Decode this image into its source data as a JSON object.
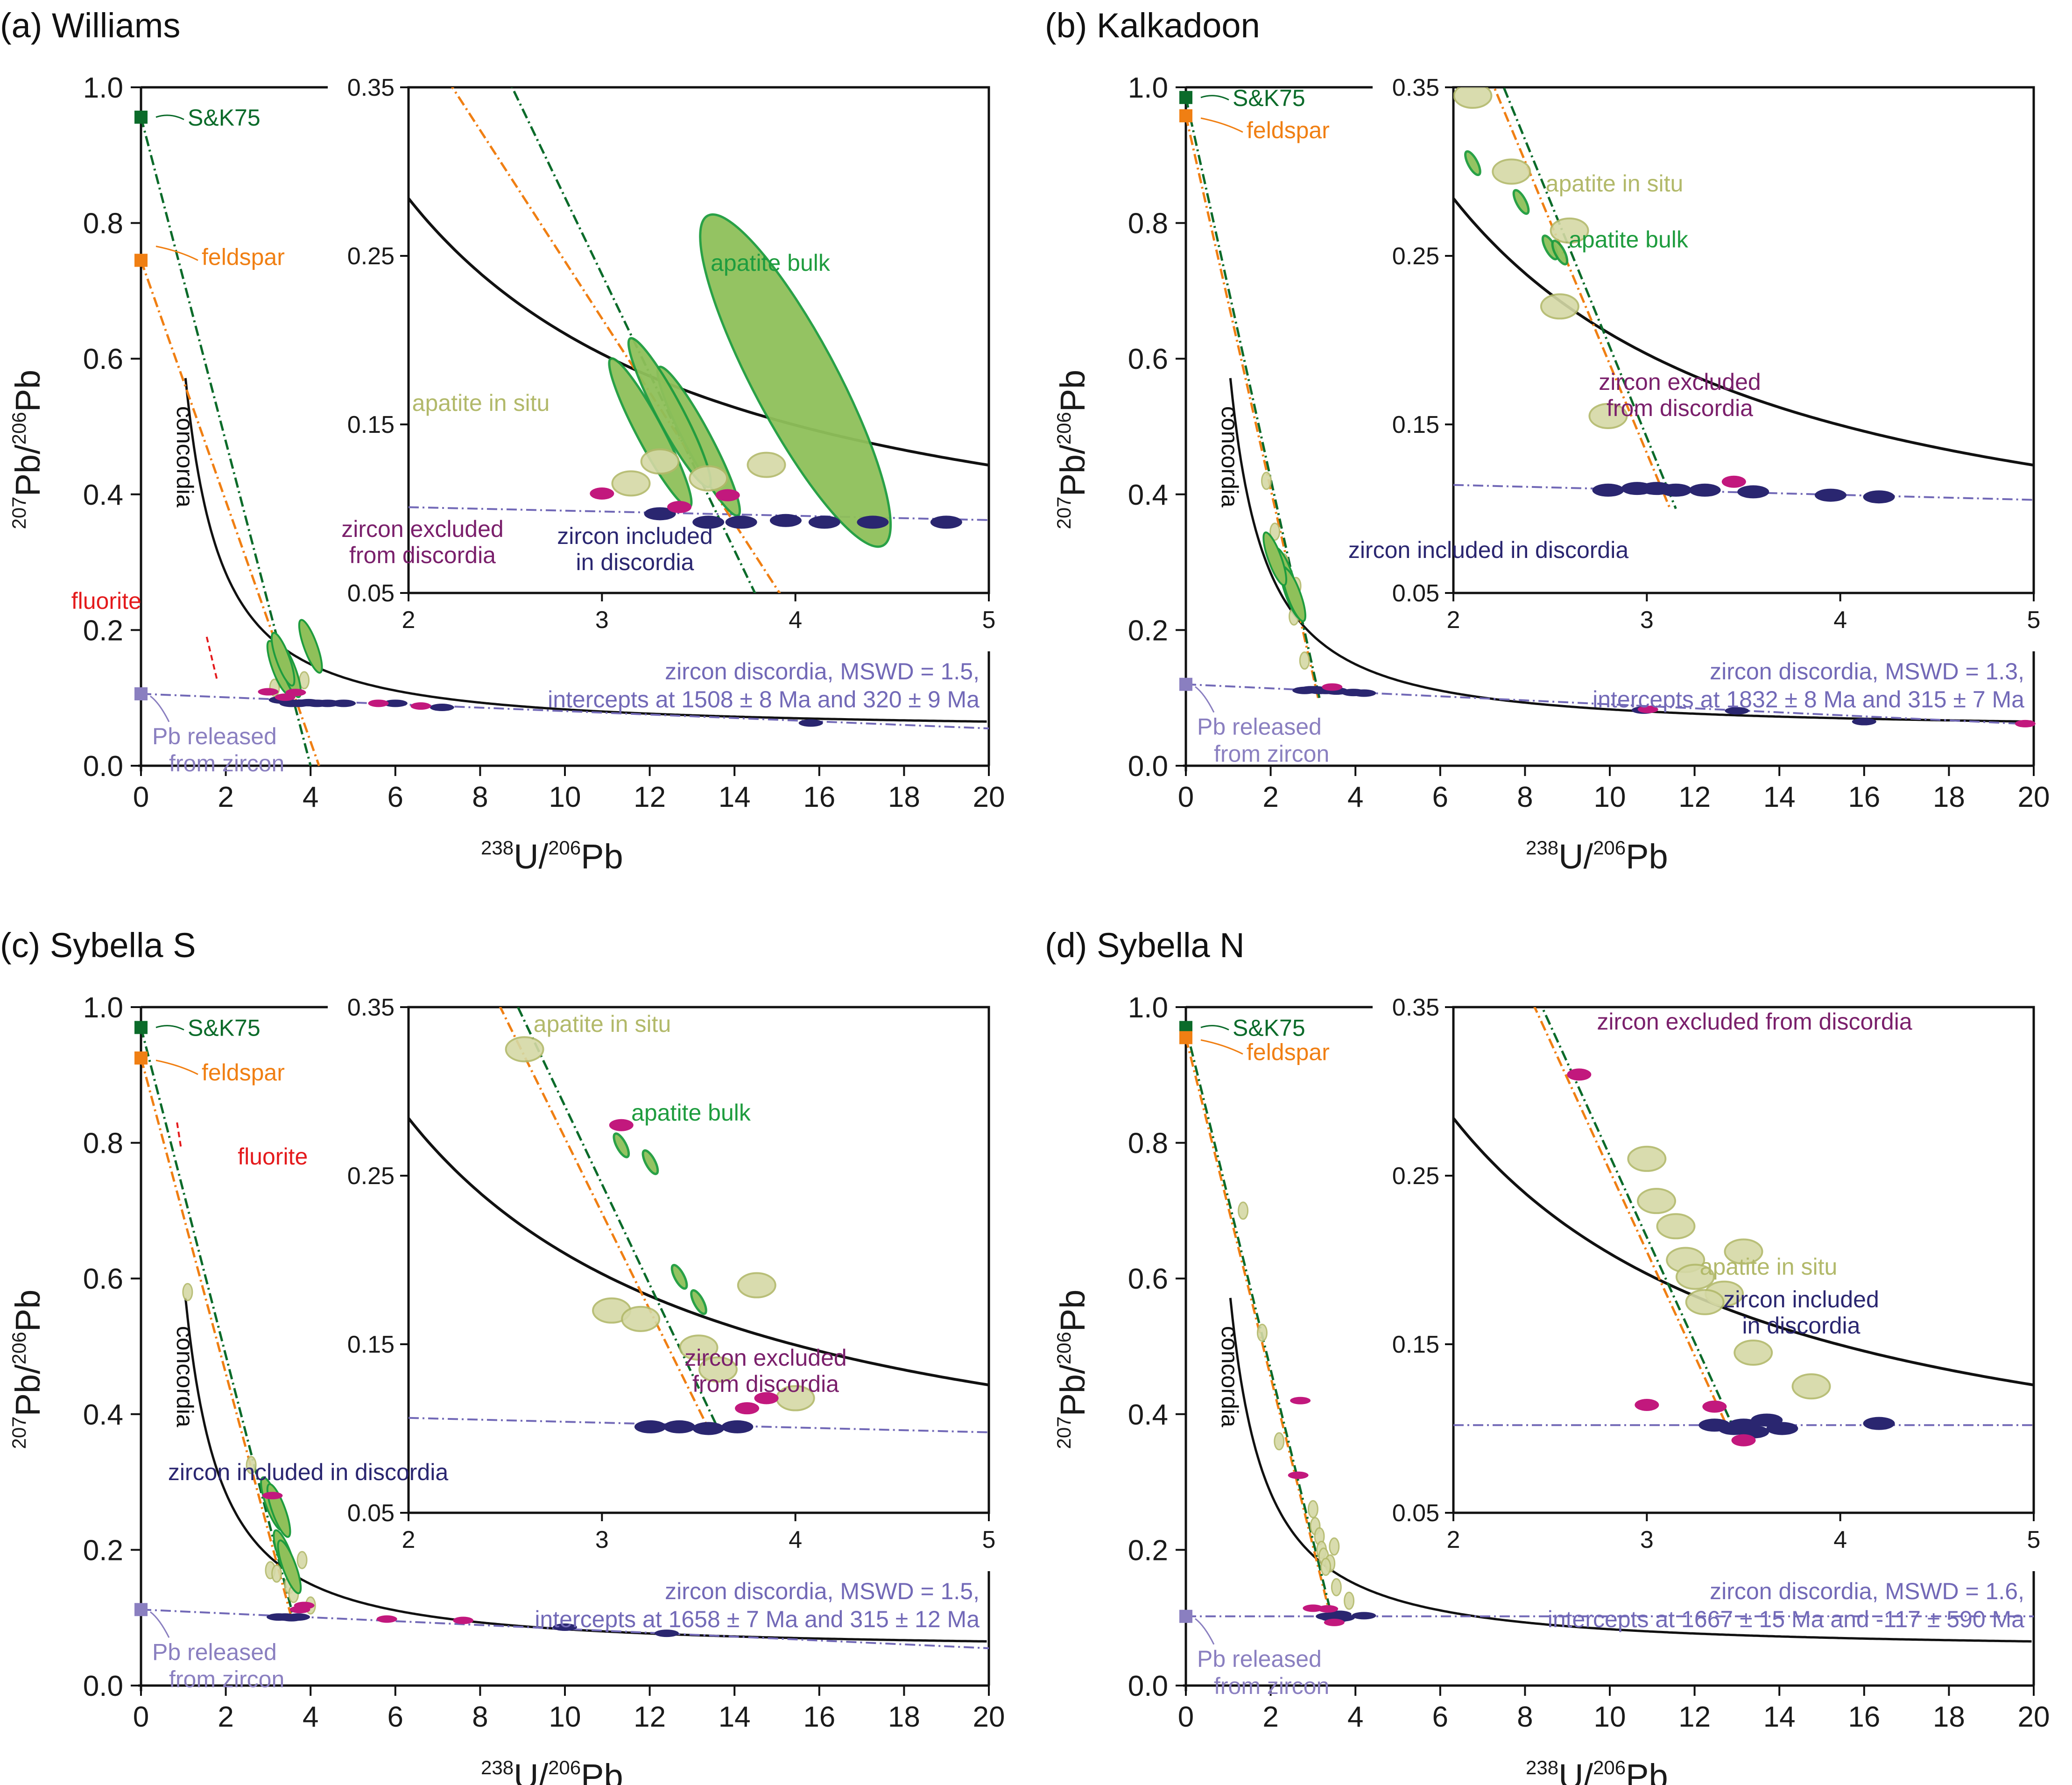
{
  "colors": {
    "skk": "#0b6b2a",
    "feldspar": "#f07f13",
    "fluorite": "#e41a1c",
    "pbrel": "#8a7fc0",
    "insitu": "#b2b96a",
    "insitu_fill": "#d5d9a6",
    "bulk": "#1e9c3e",
    "bulk_fill": "#8fc05a",
    "zinc": "#2a2670",
    "zexc": "#c2187d",
    "concordia": "#111111",
    "discordia": "#7269b7"
  },
  "axes_text": {
    "xlabel_main": "U/",
    "xlabel_sup1": "238",
    "xlabel_sup2": "206",
    "xlabel_tail": "Pb",
    "ylabel_sup1": "207",
    "ylabel_mid": "Pb/",
    "ylabel_sup2": "206",
    "ylabel_tail": "Pb"
  },
  "chart_data": [
    {
      "id": "a",
      "type": "scatter",
      "title": "(a) Williams",
      "xlabel": "238U/206Pb",
      "ylabel": "207Pb/206Pb",
      "xlim": [
        0,
        20
      ],
      "ylim": [
        0,
        1.0
      ],
      "xticks": [
        0,
        2,
        4,
        6,
        8,
        10,
        12,
        14,
        16,
        18,
        20
      ],
      "yticks": [
        0.0,
        0.2,
        0.4,
        0.6,
        0.8,
        1.0
      ],
      "inset": {
        "xlim": [
          2,
          5
        ],
        "ylim": [
          0.05,
          0.35
        ],
        "xticks": [
          2,
          3,
          4,
          5
        ],
        "yticks": [
          0.05,
          0.15,
          0.25,
          0.35
        ]
      },
      "concordia_label": "concordia",
      "anchors": {
        "skk": 0.956,
        "feldspar": 0.745,
        "pbrel": 0.106,
        "fluorite_start": [
          1.55,
          0.19
        ],
        "fluorite_end": [
          1.8,
          0.125
        ]
      },
      "labels": {
        "skk": "S&K75",
        "feldspar": "feldspar",
        "fluorite": "fluorite",
        "pbrel": [
          "Pb released",
          "from zircon"
        ],
        "discordia": [
          "zircon discordia, MSWD = 1.5,",
          "intercepts at 1508 ± 8 Ma and 320 ± 9 Ma"
        ],
        "insitu": [
          "apatite in situ"
        ],
        "bulk": [
          "apatite bulk"
        ],
        "zinc": [
          "zircon included",
          "in discordia"
        ],
        "zexc": [
          "zircon excluded",
          "from discordia"
        ]
      },
      "discordia": {
        "y0": 0.106,
        "x1": 20,
        "y1": 0.055
      },
      "skk_line_end": [
        4.0,
        0.0
      ],
      "fsp_line_end": [
        4.2,
        0.0
      ],
      "data": {
        "zinc": [
          [
            3.3,
            0.097
          ],
          [
            3.55,
            0.092
          ],
          [
            3.72,
            0.092
          ],
          [
            3.95,
            0.093
          ],
          [
            4.15,
            0.092
          ],
          [
            4.4,
            0.092
          ],
          [
            4.78,
            0.092
          ],
          [
            6.0,
            0.092
          ],
          [
            7.1,
            0.086
          ],
          [
            15.8,
            0.063
          ]
        ],
        "zexc": [
          [
            3.0,
            0.109
          ],
          [
            3.4,
            0.101
          ],
          [
            3.65,
            0.108
          ],
          [
            5.6,
            0.092
          ],
          [
            6.6,
            0.088
          ]
        ],
        "insitu": [
          [
            3.3,
            0.128
          ],
          [
            3.55,
            0.118
          ],
          [
            3.85,
            0.126
          ],
          [
            3.15,
            0.115
          ]
        ],
        "bulk": [
          [
            4.0,
            0.176
          ],
          [
            3.25,
            0.145
          ],
          [
            3.5,
            0.14
          ],
          [
            3.35,
            0.157
          ]
        ]
      }
    },
    {
      "id": "b",
      "type": "scatter",
      "title": "(b) Kalkadoon",
      "xlabel": "238U/206Pb",
      "ylabel": "207Pb/206Pb",
      "xlim": [
        0,
        20
      ],
      "ylim": [
        0,
        1.0
      ],
      "xticks": [
        0,
        2,
        4,
        6,
        8,
        10,
        12,
        14,
        16,
        18,
        20
      ],
      "yticks": [
        0.0,
        0.2,
        0.4,
        0.6,
        0.8,
        1.0
      ],
      "inset": {
        "xlim": [
          2,
          5
        ],
        "ylim": [
          0.05,
          0.35
        ],
        "xticks": [
          2,
          3,
          4,
          5
        ],
        "yticks": [
          0.05,
          0.15,
          0.25,
          0.35
        ]
      },
      "concordia_label": "concordia",
      "anchors": {
        "skk": 0.985,
        "feldspar": 0.958,
        "pbrel": 0.12
      },
      "labels": {
        "skk": "S&K75",
        "feldspar": "feldspar",
        "pbrel": [
          "Pb released",
          "from zircon"
        ],
        "discordia": [
          "zircon discordia, MSWD = 1.3,",
          "intercepts at 1832 ± 8 Ma and 315 ± 7 Ma"
        ],
        "insitu": [
          "apatite in situ"
        ],
        "bulk": [
          "apatite bulk"
        ],
        "zinc": [
          "zircon included in discordia"
        ],
        "zexc": [
          "zircon excluded",
          "from discordia"
        ]
      },
      "discordia": {
        "y0": 0.12,
        "x1": 20,
        "y1": 0.061
      },
      "skk_line_end": [
        3.15,
        0.1
      ],
      "fsp_line_end": [
        3.12,
        0.1
      ],
      "data": {
        "zinc": [
          [
            2.8,
            0.111
          ],
          [
            2.95,
            0.112
          ],
          [
            3.05,
            0.112
          ],
          [
            3.15,
            0.111
          ],
          [
            3.3,
            0.111
          ],
          [
            3.55,
            0.11
          ],
          [
            3.95,
            0.108
          ],
          [
            4.2,
            0.107
          ],
          [
            10.8,
            0.082
          ],
          [
            13.0,
            0.081
          ],
          [
            16.0,
            0.065
          ]
        ],
        "zexc": [
          [
            3.45,
            0.116
          ],
          [
            10.9,
            0.083
          ],
          [
            19.8,
            0.062
          ]
        ],
        "insitu": [
          [
            2.1,
            0.345
          ],
          [
            2.6,
            0.265
          ],
          [
            2.55,
            0.22
          ],
          [
            2.8,
            0.155
          ],
          [
            1.9,
            0.42
          ],
          [
            2.3,
            0.3
          ]
        ],
        "bulk": [
          [
            2.35,
            0.282
          ],
          [
            2.5,
            0.255
          ],
          [
            2.55,
            0.252
          ],
          [
            2.1,
            0.305
          ]
        ]
      }
    },
    {
      "id": "c",
      "type": "scatter",
      "title": "(c) Sybella S",
      "xlabel": "238U/206Pb",
      "ylabel": "207Pb/206Pb",
      "xlim": [
        0,
        20
      ],
      "ylim": [
        0,
        1.0
      ],
      "xticks": [
        0,
        2,
        4,
        6,
        8,
        10,
        12,
        14,
        16,
        18,
        20
      ],
      "yticks": [
        0.0,
        0.2,
        0.4,
        0.6,
        0.8,
        1.0
      ],
      "inset": {
        "xlim": [
          2,
          5
        ],
        "ylim": [
          0.05,
          0.35
        ],
        "xticks": [
          2,
          3,
          4,
          5
        ],
        "yticks": [
          0.05,
          0.15,
          0.25,
          0.35
        ]
      },
      "concordia_label": "concordia",
      "anchors": {
        "skk": 0.97,
        "feldspar": 0.925,
        "pbrel": 0.112,
        "fluorite_start": [
          0.85,
          0.83
        ],
        "fluorite_end": [
          0.95,
          0.79
        ]
      },
      "labels": {
        "skk": "S&K75",
        "feldspar": "feldspar",
        "fluorite": "fluorite",
        "pbrel": [
          "Pb released",
          "from zircon"
        ],
        "discordia": [
          "zircon discordia, MSWD = 1.5,",
          "intercepts at 1658 ± 7 Ma and 315 ± 12 Ma"
        ],
        "insitu": [
          "apatite in situ"
        ],
        "bulk": [
          "apatite bulk"
        ],
        "zinc": [
          "zircon included in discordia"
        ],
        "zexc": [
          "zircon excluded",
          "from discordia"
        ]
      },
      "discordia": {
        "y0": 0.112,
        "x1": 20,
        "y1": 0.055
      },
      "skk_line_end": [
        3.6,
        0.1
      ],
      "fsp_line_end": [
        3.55,
        0.1
      ],
      "data": {
        "zinc": [
          [
            3.25,
            0.101
          ],
          [
            3.4,
            0.101
          ],
          [
            3.55,
            0.1
          ],
          [
            3.7,
            0.101
          ],
          [
            10.0,
            0.086
          ],
          [
            12.4,
            0.077
          ]
        ],
        "zexc": [
          [
            3.1,
            0.28
          ],
          [
            3.75,
            0.112
          ],
          [
            3.85,
            0.118
          ],
          [
            5.8,
            0.098
          ],
          [
            7.6,
            0.096
          ]
        ],
        "insitu": [
          [
            2.6,
            0.325
          ],
          [
            3.05,
            0.17
          ],
          [
            3.2,
            0.165
          ],
          [
            3.5,
            0.148
          ],
          [
            3.6,
            0.135
          ],
          [
            4.0,
            0.118
          ],
          [
            3.8,
            0.185
          ],
          [
            1.1,
            0.58
          ]
        ],
        "bulk": [
          [
            3.1,
            0.268
          ],
          [
            3.25,
            0.258
          ],
          [
            3.4,
            0.19
          ],
          [
            3.5,
            0.175
          ]
        ]
      }
    },
    {
      "id": "d",
      "type": "scatter",
      "title": "(d) Sybella N",
      "xlabel": "238U/206Pb",
      "ylabel": "207Pb/206Pb",
      "xlim": [
        0,
        20
      ],
      "ylim": [
        0,
        1.0
      ],
      "xticks": [
        0,
        2,
        4,
        6,
        8,
        10,
        12,
        14,
        16,
        18,
        20
      ],
      "yticks": [
        0.0,
        0.2,
        0.4,
        0.6,
        0.8,
        1.0
      ],
      "inset": {
        "xlim": [
          2,
          5
        ],
        "ylim": [
          0.05,
          0.35
        ],
        "xticks": [
          2,
          3,
          4,
          5
        ],
        "yticks": [
          0.05,
          0.15,
          0.25,
          0.35
        ]
      },
      "concordia_label": "concordia",
      "anchors": {
        "skk": 0.97,
        "feldspar": 0.955,
        "pbrel": 0.102
      },
      "labels": {
        "skk": "S&K75",
        "feldspar": "feldspar",
        "pbrel": [
          "Pb released",
          "from zircon"
        ],
        "discordia": [
          "zircon discordia, MSWD = 1.6,",
          "intercepts at 1667 ± 15 Ma and -117 ± 590 Ma"
        ],
        "insitu": [
          "apatite in situ"
        ],
        "bulk": [],
        "zinc": [
          "zircon included",
          "in discordia"
        ],
        "zexc": [
          "zircon excluded from discordia"
        ]
      },
      "discordia": {
        "y0": 0.102,
        "x1": 20,
        "y1": 0.102
      },
      "skk_line_end": [
        3.45,
        0.1
      ],
      "fsp_line_end": [
        3.42,
        0.1
      ],
      "data": {
        "zinc": [
          [
            3.35,
            0.102
          ],
          [
            3.45,
            0.1
          ],
          [
            3.55,
            0.098
          ],
          [
            3.62,
            0.105
          ],
          [
            3.7,
            0.1
          ],
          [
            4.2,
            0.103
          ],
          [
            3.5,
            0.102
          ]
        ],
        "zexc": [
          [
            2.65,
            0.31
          ],
          [
            3.35,
            0.113
          ],
          [
            3.5,
            0.093
          ],
          [
            3.0,
            0.114
          ],
          [
            2.7,
            0.42
          ]
        ],
        "insitu": [
          [
            3.0,
            0.26
          ],
          [
            3.05,
            0.235
          ],
          [
            3.15,
            0.22
          ],
          [
            3.2,
            0.2
          ],
          [
            3.25,
            0.19
          ],
          [
            3.5,
            0.205
          ],
          [
            3.4,
            0.18
          ],
          [
            3.3,
            0.175
          ],
          [
            3.55,
            0.145
          ],
          [
            3.85,
            0.125
          ],
          [
            1.35,
            0.7
          ],
          [
            1.8,
            0.52
          ],
          [
            2.2,
            0.36
          ]
        ]
      }
    }
  ]
}
